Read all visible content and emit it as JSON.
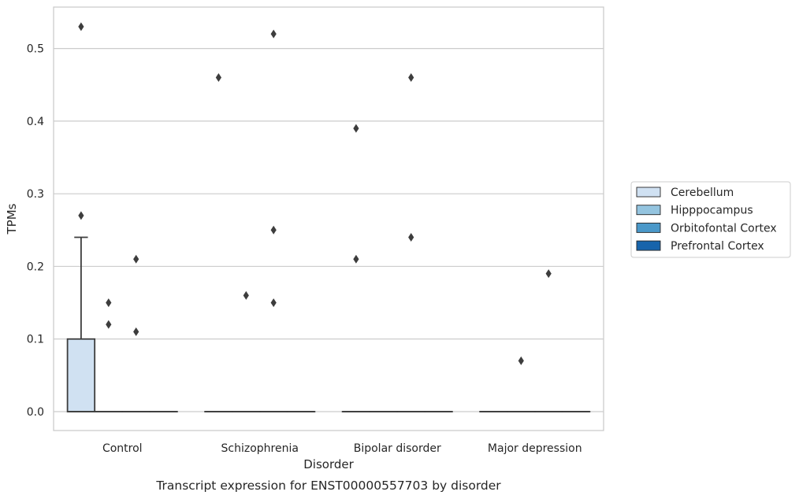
{
  "chart_data": {
    "type": "box",
    "title": "",
    "caption": "Transcript expression for ENST00000557703 by disorder",
    "xlabel": "Disorder",
    "ylabel": "TPMs",
    "ylim": [
      -0.026,
      0.557
    ],
    "yticks": [
      0.0,
      0.1,
      0.2,
      0.3,
      0.4,
      0.5
    ],
    "ytick_labels": [
      "0.0",
      "0.1",
      "0.2",
      "0.3",
      "0.4",
      "0.5"
    ],
    "grid": true,
    "legend_position": "right",
    "categories": [
      "Control",
      "Schizophrenia",
      "Bipolar disorder",
      "Major depression"
    ],
    "series": [
      {
        "name": "Cerebellum",
        "color": "#d0e1f2",
        "boxes": [
          {
            "q1": 0.0,
            "median": 0.0,
            "q3": 0.1,
            "whisker_low": 0.0,
            "whisker_high": 0.24,
            "outliers": [
              0.53,
              0.27
            ]
          },
          {
            "q1": 0.0,
            "median": 0.0,
            "q3": 0.0,
            "whisker_low": 0.0,
            "whisker_high": 0.0,
            "outliers": [
              0.46
            ]
          },
          {
            "q1": 0.0,
            "median": 0.0,
            "q3": 0.0,
            "whisker_low": 0.0,
            "whisker_high": 0.0,
            "outliers": [
              0.39,
              0.21
            ]
          },
          {
            "q1": 0.0,
            "median": 0.0,
            "q3": 0.0,
            "whisker_low": 0.0,
            "whisker_high": 0.0,
            "outliers": []
          }
        ]
      },
      {
        "name": "Hipppocampus",
        "color": "#94c4df",
        "boxes": [
          {
            "q1": 0.0,
            "median": 0.0,
            "q3": 0.0,
            "whisker_low": 0.0,
            "whisker_high": 0.0,
            "outliers": [
              0.15,
              0.12
            ]
          },
          {
            "q1": 0.0,
            "median": 0.0,
            "q3": 0.0,
            "whisker_low": 0.0,
            "whisker_high": 0.0,
            "outliers": [
              0.16
            ]
          },
          {
            "q1": 0.0,
            "median": 0.0,
            "q3": 0.0,
            "whisker_low": 0.0,
            "whisker_high": 0.0,
            "outliers": []
          },
          {
            "q1": 0.0,
            "median": 0.0,
            "q3": 0.0,
            "whisker_low": 0.0,
            "whisker_high": 0.0,
            "outliers": [
              0.07
            ]
          }
        ]
      },
      {
        "name": "Orbitofontal Cortex",
        "color": "#4a98c9",
        "boxes": [
          {
            "q1": 0.0,
            "median": 0.0,
            "q3": 0.0,
            "whisker_low": 0.0,
            "whisker_high": 0.0,
            "outliers": [
              0.21,
              0.11
            ]
          },
          {
            "q1": 0.0,
            "median": 0.0,
            "q3": 0.0,
            "whisker_low": 0.0,
            "whisker_high": 0.0,
            "outliers": [
              0.52,
              0.25,
              0.15
            ]
          },
          {
            "q1": 0.0,
            "median": 0.0,
            "q3": 0.0,
            "whisker_low": 0.0,
            "whisker_high": 0.0,
            "outliers": [
              0.46,
              0.24
            ]
          },
          {
            "q1": 0.0,
            "median": 0.0,
            "q3": 0.0,
            "whisker_low": 0.0,
            "whisker_high": 0.0,
            "outliers": [
              0.19
            ]
          }
        ]
      },
      {
        "name": "Prefrontal Cortex",
        "color": "#1764ab",
        "boxes": [
          {
            "q1": 0.0,
            "median": 0.0,
            "q3": 0.0,
            "whisker_low": 0.0,
            "whisker_high": 0.0,
            "outliers": []
          },
          {
            "q1": 0.0,
            "median": 0.0,
            "q3": 0.0,
            "whisker_low": 0.0,
            "whisker_high": 0.0,
            "outliers": []
          },
          {
            "q1": 0.0,
            "median": 0.0,
            "q3": 0.0,
            "whisker_low": 0.0,
            "whisker_high": 0.0,
            "outliers": []
          },
          {
            "q1": 0.0,
            "median": 0.0,
            "q3": 0.0,
            "whisker_low": 0.0,
            "whisker_high": 0.0,
            "outliers": []
          }
        ]
      }
    ]
  }
}
